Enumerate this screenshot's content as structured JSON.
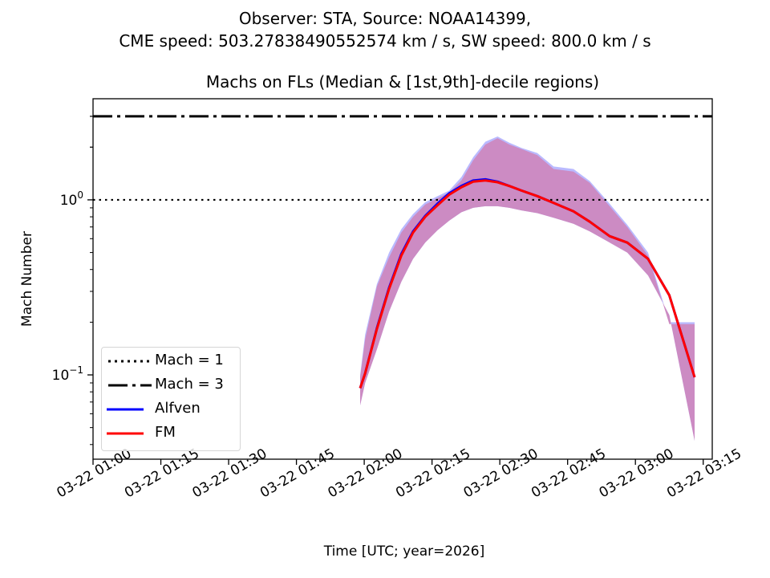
{
  "chart_data": {
    "type": "line",
    "suptitle": [
      "Observer: STA, Source: NOAA14399,",
      "CME speed: 503.27838490552574 km / s, SW speed: 800.0 km / s"
    ],
    "title": "Machs on FLs (Median & [1st,9th]-decile regions)",
    "xlabel": "Time [UTC; year=2026]",
    "ylabel": "Mach Number",
    "yscale": "log",
    "ylim": [
      0.033,
      3.78
    ],
    "xlim_minutes_after_0100": [
      0,
      137
    ],
    "x_ticks": [
      {
        "min": 0,
        "label": "03-22 01:00"
      },
      {
        "min": 15,
        "label": "03-22 01:15"
      },
      {
        "min": 30,
        "label": "03-22 01:30"
      },
      {
        "min": 45,
        "label": "03-22 01:45"
      },
      {
        "min": 60,
        "label": "03-22 02:00"
      },
      {
        "min": 75,
        "label": "03-22 02:15"
      },
      {
        "min": 90,
        "label": "03-22 02:30"
      },
      {
        "min": 105,
        "label": "03-22 02:45"
      },
      {
        "min": 120,
        "label": "03-22 03:00"
      },
      {
        "min": 135,
        "label": "03-22 03:15"
      }
    ],
    "y_ticks": [
      {
        "value": 1,
        "base": "10",
        "exp": "0"
      },
      {
        "value": 0.1,
        "base": "10",
        "exp": "−1"
      }
    ],
    "hlines": [
      {
        "name": "Mach = 1",
        "value": 1,
        "style": "dotted",
        "color": "#000000"
      },
      {
        "name": "Mach = 3",
        "value": 3,
        "style": "dashdot",
        "color": "#000000"
      }
    ],
    "x": [
      59.1,
      60.2,
      62.8,
      65.5,
      68.2,
      70.8,
      73.5,
      76.2,
      78.8,
      81.5,
      84.1,
      86.8,
      89.5,
      92.1,
      94.8,
      98.3,
      101.9,
      106.3,
      109.9,
      114.3,
      118.2,
      122.8,
      127.5,
      133.1
    ],
    "series": [
      {
        "name": "Alfven",
        "color": "#0000ff",
        "band_color": "#b3b3ff",
        "median": [
          0.084,
          0.102,
          0.185,
          0.315,
          0.49,
          0.66,
          0.81,
          0.95,
          1.09,
          1.2,
          1.29,
          1.31,
          1.27,
          1.2,
          1.13,
          1.05,
          0.96,
          0.86,
          0.75,
          0.62,
          0.57,
          0.46,
          0.285,
          0.097
        ],
        "upper": [
          0.1,
          0.17,
          0.33,
          0.5,
          0.68,
          0.83,
          0.97,
          1.05,
          1.13,
          1.35,
          1.75,
          2.15,
          2.3,
          2.12,
          1.98,
          1.85,
          1.55,
          1.5,
          1.28,
          0.95,
          0.72,
          0.5,
          0.2,
          0.2
        ],
        "lower": [
          0.067,
          0.09,
          0.14,
          0.23,
          0.34,
          0.46,
          0.57,
          0.67,
          0.76,
          0.85,
          0.9,
          0.92,
          0.92,
          0.9,
          0.87,
          0.84,
          0.79,
          0.73,
          0.66,
          0.57,
          0.5,
          0.37,
          0.22,
          0.042
        ]
      },
      {
        "name": "FM",
        "color": "#ff0000",
        "band_color": "#cc88c0",
        "median": [
          0.084,
          0.102,
          0.183,
          0.31,
          0.48,
          0.65,
          0.8,
          0.93,
          1.07,
          1.18,
          1.27,
          1.29,
          1.26,
          1.2,
          1.13,
          1.05,
          0.96,
          0.86,
          0.75,
          0.62,
          0.57,
          0.46,
          0.285,
          0.097
        ],
        "upper": [
          0.097,
          0.16,
          0.32,
          0.47,
          0.65,
          0.8,
          0.94,
          1.02,
          1.1,
          1.29,
          1.68,
          2.07,
          2.25,
          2.07,
          1.95,
          1.8,
          1.5,
          1.45,
          1.25,
          0.92,
          0.7,
          0.48,
          0.195,
          0.195
        ],
        "lower": [
          0.067,
          0.09,
          0.14,
          0.23,
          0.34,
          0.46,
          0.57,
          0.67,
          0.76,
          0.85,
          0.9,
          0.92,
          0.92,
          0.9,
          0.87,
          0.84,
          0.79,
          0.73,
          0.66,
          0.57,
          0.5,
          0.37,
          0.22,
          0.042
        ]
      }
    ],
    "legend": {
      "placement": "lower-left",
      "entries": [
        "Mach = 1",
        "Mach = 3",
        "Alfven",
        "FM"
      ]
    },
    "grid": false
  }
}
